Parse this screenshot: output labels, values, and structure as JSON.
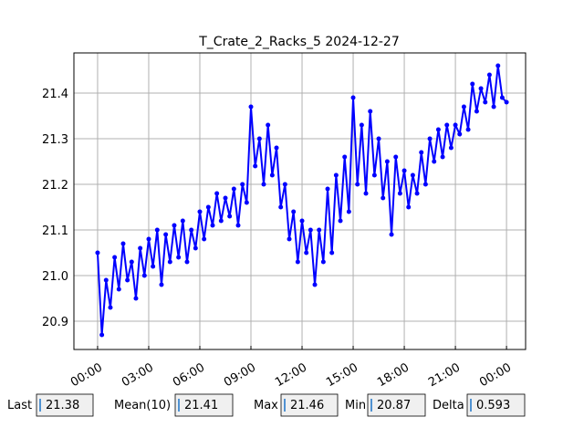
{
  "chart_data": {
    "type": "line",
    "title": "T_Crate_2_Racks_5 2024-12-27",
    "color": "#0000ff",
    "grid": true,
    "x": [
      0,
      0.25,
      0.5,
      0.75,
      1,
      1.25,
      1.5,
      1.75,
      2,
      2.25,
      2.5,
      2.75,
      3,
      3.25,
      3.5,
      3.75,
      4,
      4.25,
      4.5,
      4.75,
      5,
      5.25,
      5.5,
      5.75,
      6,
      6.25,
      6.5,
      6.75,
      7,
      7.25,
      7.5,
      7.75,
      8,
      8.25,
      8.5,
      8.75,
      9,
      9.25,
      9.5,
      9.75,
      10,
      10.25,
      10.5,
      10.75,
      11,
      11.25,
      11.5,
      11.75,
      12,
      12.25,
      12.5,
      12.75,
      13,
      13.25,
      13.5,
      13.75,
      14,
      14.25,
      14.5,
      14.75,
      15,
      15.25,
      15.5,
      15.75,
      16,
      16.25,
      16.5,
      16.75,
      17,
      17.25,
      17.5,
      17.75,
      18,
      18.25,
      18.5,
      18.75,
      19,
      19.25,
      19.5,
      19.75,
      20,
      20.25,
      20.5,
      20.75,
      21,
      21.25,
      21.5,
      21.75,
      22,
      22.25,
      22.5,
      22.75,
      23,
      23.25,
      23.5,
      23.75,
      24
    ],
    "values": [
      21.05,
      20.87,
      20.99,
      20.93,
      21.04,
      20.97,
      21.07,
      20.99,
      21.03,
      20.95,
      21.06,
      21.0,
      21.08,
      21.02,
      21.1,
      20.98,
      21.09,
      21.03,
      21.11,
      21.04,
      21.12,
      21.03,
      21.1,
      21.06,
      21.14,
      21.08,
      21.15,
      21.11,
      21.18,
      21.12,
      21.17,
      21.13,
      21.19,
      21.11,
      21.2,
      21.16,
      21.37,
      21.24,
      21.3,
      21.2,
      21.33,
      21.22,
      21.28,
      21.15,
      21.2,
      21.08,
      21.14,
      21.03,
      21.12,
      21.05,
      21.1,
      20.98,
      21.1,
      21.03,
      21.19,
      21.05,
      21.22,
      21.12,
      21.26,
      21.14,
      21.39,
      21.2,
      21.33,
      21.18,
      21.36,
      21.22,
      21.3,
      21.17,
      21.25,
      21.09,
      21.26,
      21.18,
      21.23,
      21.15,
      21.22,
      21.18,
      21.27,
      21.2,
      21.3,
      21.25,
      21.32,
      21.26,
      21.33,
      21.28,
      21.33,
      21.31,
      21.37,
      21.32,
      21.42,
      21.36,
      21.41,
      21.38,
      21.44,
      21.37,
      21.46,
      21.39,
      21.38
    ],
    "xlim": [
      -1.39,
      25.12
    ],
    "ylim": [
      20.838,
      21.488
    ],
    "xticks": [
      {
        "value": 0,
        "label": "00:00"
      },
      {
        "value": 3,
        "label": "03:00"
      },
      {
        "value": 6,
        "label": "06:00"
      },
      {
        "value": 9,
        "label": "09:00"
      },
      {
        "value": 12,
        "label": "12:00"
      },
      {
        "value": 15,
        "label": "15:00"
      },
      {
        "value": 18,
        "label": "18:00"
      },
      {
        "value": 21,
        "label": "21:00"
      },
      {
        "value": 24,
        "label": "00:00"
      }
    ],
    "yticks": [
      20.9,
      {
        "value": 21,
        "label": "21.0"
      },
      21.1,
      21.2,
      21.3,
      21.4
    ]
  },
  "stats": [
    {
      "label": "Last",
      "value": 21.38
    },
    {
      "label": "Mean(10)",
      "value": 21.41
    },
    {
      "label": "Max",
      "value": 21.46
    },
    {
      "label": "Min",
      "value": 20.87
    },
    {
      "label": "Delta",
      "value": 0.593
    }
  ]
}
